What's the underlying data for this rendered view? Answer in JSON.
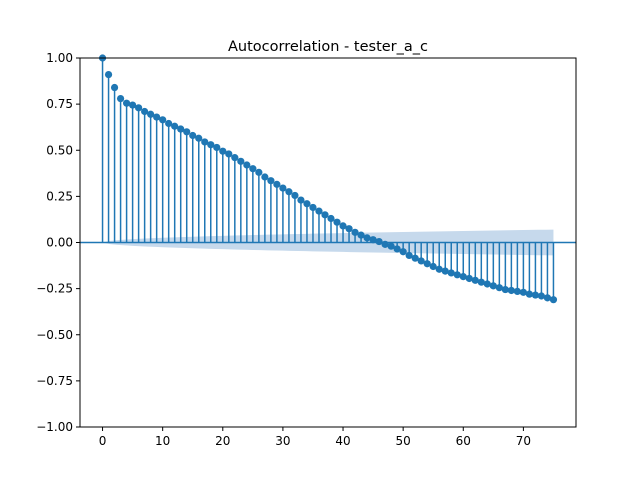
{
  "chart_data": {
    "type": "stem",
    "title": "Autocorrelation - tester_a_c",
    "xlabel": "",
    "ylabel": "",
    "xlim": [
      -3.75,
      78.75
    ],
    "ylim": [
      -1.0,
      1.0
    ],
    "x_ticks": [
      0,
      10,
      20,
      30,
      40,
      50,
      60,
      70
    ],
    "y_ticks": [
      -1.0,
      -0.75,
      -0.5,
      -0.25,
      0.0,
      0.25,
      0.5,
      0.75,
      1.0
    ],
    "x_tick_labels": [
      "0",
      "10",
      "20",
      "30",
      "40",
      "50",
      "60",
      "70"
    ],
    "y_tick_labels": [
      "−1.00",
      "−0.75",
      "−0.50",
      "−0.25",
      "0.00",
      "0.25",
      "0.50",
      "0.75",
      "1.00"
    ],
    "grid": false,
    "series_color": "#1f77b4",
    "band_color": "#c6d9ec",
    "x": [
      0,
      1,
      2,
      3,
      4,
      5,
      6,
      7,
      8,
      9,
      10,
      11,
      12,
      13,
      14,
      15,
      16,
      17,
      18,
      19,
      20,
      21,
      22,
      23,
      24,
      25,
      26,
      27,
      28,
      29,
      30,
      31,
      32,
      33,
      34,
      35,
      36,
      37,
      38,
      39,
      40,
      41,
      42,
      43,
      44,
      45,
      46,
      47,
      48,
      49,
      50,
      51,
      52,
      53,
      54,
      55,
      56,
      57,
      58,
      59,
      60,
      61,
      62,
      63,
      64,
      65,
      66,
      67,
      68,
      69,
      70,
      71,
      72,
      73,
      74,
      75
    ],
    "values": [
      1.0,
      0.91,
      0.84,
      0.78,
      0.755,
      0.745,
      0.73,
      0.71,
      0.695,
      0.68,
      0.665,
      0.645,
      0.63,
      0.615,
      0.6,
      0.58,
      0.565,
      0.545,
      0.53,
      0.515,
      0.495,
      0.48,
      0.46,
      0.44,
      0.42,
      0.4,
      0.38,
      0.355,
      0.335,
      0.315,
      0.295,
      0.275,
      0.255,
      0.23,
      0.21,
      0.19,
      0.17,
      0.15,
      0.13,
      0.11,
      0.09,
      0.075,
      0.055,
      0.04,
      0.025,
      0.015,
      0.005,
      -0.01,
      -0.02,
      -0.035,
      -0.05,
      -0.07,
      -0.085,
      -0.1,
      -0.115,
      -0.13,
      -0.145,
      -0.155,
      -0.165,
      -0.175,
      -0.185,
      -0.195,
      -0.205,
      -0.215,
      -0.225,
      -0.235,
      -0.245,
      -0.255,
      -0.26,
      -0.265,
      -0.27,
      -0.28,
      -0.285,
      -0.29,
      -0.3,
      -0.31
    ],
    "confidence_band": {
      "x_start": 0,
      "x_end": 75,
      "half_width_start": 0.0,
      "half_width_end": 0.07
    }
  }
}
